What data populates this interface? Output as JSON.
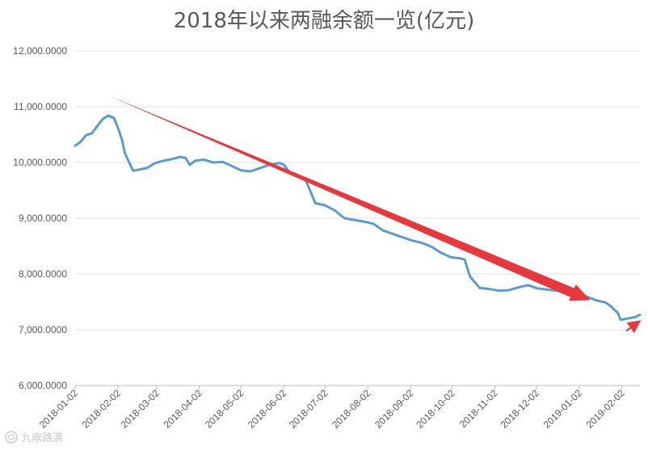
{
  "chart_data": {
    "type": "line",
    "title": "2018年以来两融余额一览(亿元)",
    "xlabel": "",
    "ylabel": "",
    "ylim": [
      6000,
      12000
    ],
    "yticks": [
      6000,
      7000,
      8000,
      9000,
      10000,
      11000,
      12000
    ],
    "ytick_labels": [
      "6,000.0000",
      "7,000.0000",
      "8,000.0000",
      "9,000.0000",
      "10,000.0000",
      "11,000.0000",
      "12,000.0000"
    ],
    "xlim": [
      "2018-01-02",
      "2019-02-15"
    ],
    "xtick_labels": [
      "2018-01-02",
      "2018-02-02",
      "2018-03-02",
      "2018-04-02",
      "2018-05-02",
      "2018-06-02",
      "2018-07-02",
      "2018-08-02",
      "2018-09-02",
      "2018-10-02",
      "2018-11-02",
      "2018-12-02",
      "2019-01-02",
      "2019-02-02"
    ],
    "grid": true,
    "line_color": "#5b9bd5",
    "series": [
      {
        "x": [
          "2018-01-02",
          "2018-01-06",
          "2018-01-10",
          "2018-01-14",
          "2018-01-18",
          "2018-01-22",
          "2018-01-26",
          "2018-01-30",
          "2018-02-02",
          "2018-02-05",
          "2018-02-07",
          "2018-02-09",
          "2018-02-13",
          "2018-02-23",
          "2018-03-01",
          "2018-03-07",
          "2018-03-13",
          "2018-03-19",
          "2018-03-23",
          "2018-03-26",
          "2018-03-30",
          "2018-04-05",
          "2018-04-12",
          "2018-04-19",
          "2018-04-26",
          "2018-05-02",
          "2018-05-09",
          "2018-05-16",
          "2018-05-23",
          "2018-05-30",
          "2018-06-02",
          "2018-06-06",
          "2018-06-12",
          "2018-06-18",
          "2018-06-25",
          "2018-07-02",
          "2018-07-09",
          "2018-07-16",
          "2018-07-23",
          "2018-07-30",
          "2018-08-06",
          "2018-08-13",
          "2018-08-20",
          "2018-08-27",
          "2018-09-03",
          "2018-09-10",
          "2018-09-17",
          "2018-09-24",
          "2018-10-01",
          "2018-10-08",
          "2018-10-11",
          "2018-10-15",
          "2018-10-22",
          "2018-10-29",
          "2018-11-05",
          "2018-11-12",
          "2018-11-19",
          "2018-11-26",
          "2018-12-03",
          "2018-12-10",
          "2018-12-17",
          "2018-12-24",
          "2018-12-31",
          "2019-01-07",
          "2019-01-14",
          "2019-01-21",
          "2019-01-25",
          "2019-01-30",
          "2019-02-01",
          "2019-02-06",
          "2019-02-12",
          "2019-02-15"
        ],
        "values": [
          10300,
          10370,
          10490,
          10520,
          10650,
          10780,
          10840,
          10800,
          10620,
          10400,
          10170,
          10060,
          9850,
          9900,
          9990,
          10030,
          10060,
          10100,
          10080,
          9960,
          10030,
          10050,
          10000,
          10010,
          9930,
          9860,
          9840,
          9900,
          9960,
          9990,
          9960,
          9830,
          9780,
          9680,
          9270,
          9230,
          9140,
          9000,
          8970,
          8940,
          8900,
          8780,
          8720,
          8660,
          8600,
          8560,
          8490,
          8380,
          8300,
          8280,
          8260,
          7950,
          7750,
          7730,
          7700,
          7710,
          7760,
          7800,
          7740,
          7720,
          7700,
          7660,
          7640,
          7600,
          7530,
          7490,
          7420,
          7300,
          7180,
          7200,
          7230,
          7270
        ]
      }
    ],
    "annotations": [
      {
        "type": "arrow",
        "color": "#e8383d",
        "from": [
          "2018-01-26",
          11200
        ],
        "to": [
          "2019-01-10",
          7530
        ]
      },
      {
        "type": "arrow",
        "color": "#e8383d",
        "from": [
          "2019-02-05",
          6980
        ],
        "to": [
          "2019-02-15",
          7150
        ]
      }
    ]
  },
  "watermark": {
    "text": "九鼎路演",
    "icon": "logo-icon"
  }
}
